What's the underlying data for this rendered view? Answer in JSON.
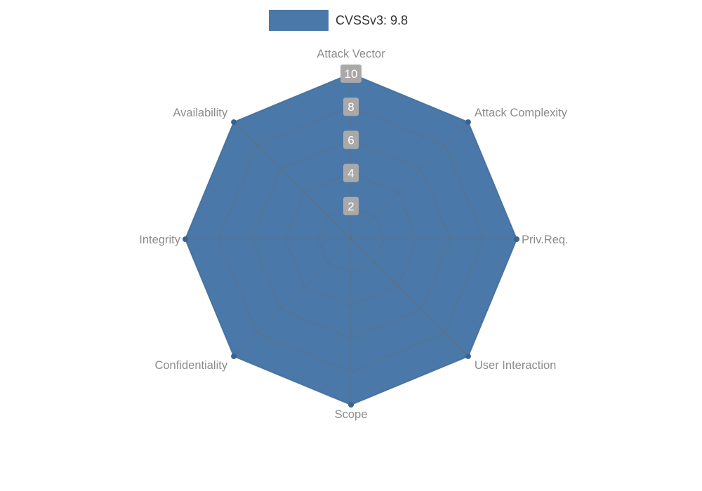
{
  "legend": {
    "label": "CVSSv3: 9.8",
    "swatch_color": "#4a78a8"
  },
  "chart_data": {
    "type": "radar",
    "title": "CVSSv3: 9.8",
    "categories": [
      "Attack Vector",
      "Attack Complexity",
      "Priv.Req.",
      "User Interaction",
      "Scope",
      "Confidentiality",
      "Integrity",
      "Availability"
    ],
    "series": [
      {
        "name": "CVSSv3: 9.8",
        "values": [
          10,
          10,
          10,
          10,
          10,
          10,
          10,
          10
        ]
      }
    ],
    "ticks": [
      2,
      4,
      6,
      8,
      10
    ],
    "rlim": [
      0,
      10
    ],
    "grid": true,
    "legend_position": "top-center",
    "colors": {
      "fill": "#4a78a8",
      "stroke": "#44719f",
      "marker": "#3a648f",
      "grid": "#6b6b6b",
      "tick_bg": "#a9a9a9",
      "tick_text": "#ffffff",
      "label": "#8c8c8c",
      "legend_text": "#333333"
    }
  }
}
